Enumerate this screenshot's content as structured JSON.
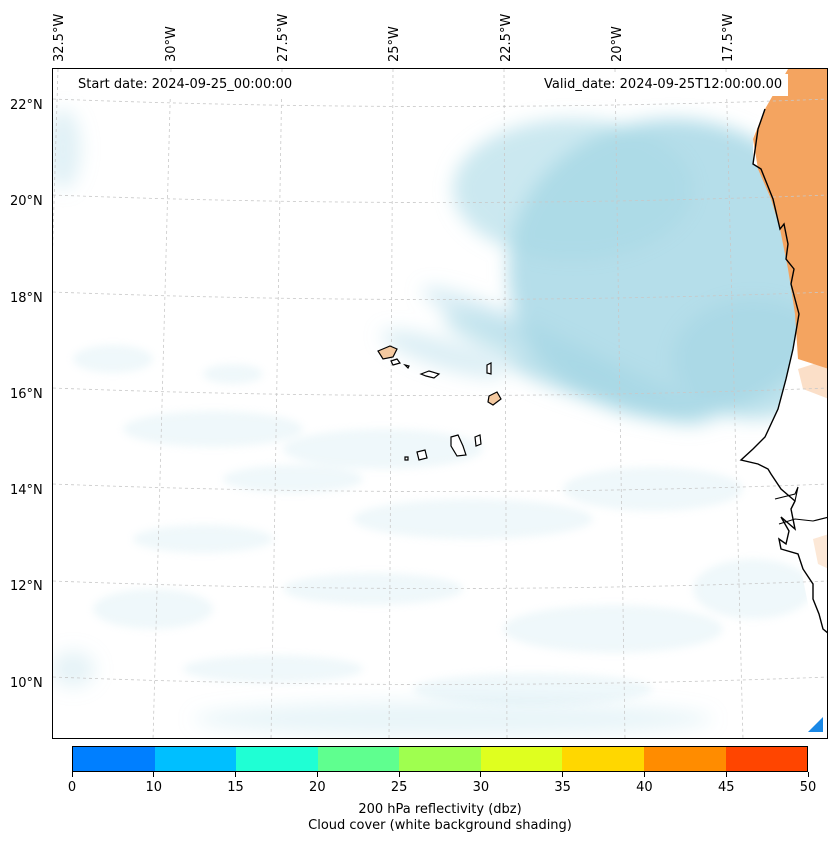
{
  "map": {
    "start_date": "Start date: 2024-09-25_00:00:00",
    "valid_date": "Valid_date: 2024-09-25T12:00:00.00",
    "lon_labels": [
      "32.5°W",
      "30°W",
      "27.5°W",
      "25°W",
      "22.5°W",
      "20°W",
      "17.5°W"
    ],
    "lat_labels": [
      "22°N",
      "20°N",
      "18°N",
      "16°N",
      "14°N",
      "12°N",
      "10°N"
    ],
    "gridlines": true,
    "gridline_style": "dashed",
    "cloud_color": "#a8d8e6",
    "land_color": "#f4a460",
    "coastline_color": "#000000",
    "layers": [
      "cloud cover shading",
      "200 hPa reflectivity",
      "coastlines"
    ]
  },
  "colorbar": {
    "ticks": [
      "0",
      "10",
      "15",
      "20",
      "25",
      "30",
      "35",
      "40",
      "45",
      "50"
    ],
    "colors": [
      "#007fff",
      "#00bfff",
      "#1fffd4",
      "#5fff8f",
      "#9fff4f",
      "#dfff1f",
      "#ffd700",
      "#ff8c00",
      "#ff4500"
    ],
    "label": "200 hPa reflectivity (dbz)",
    "sublabel": "Cloud cover (white background shading)"
  }
}
